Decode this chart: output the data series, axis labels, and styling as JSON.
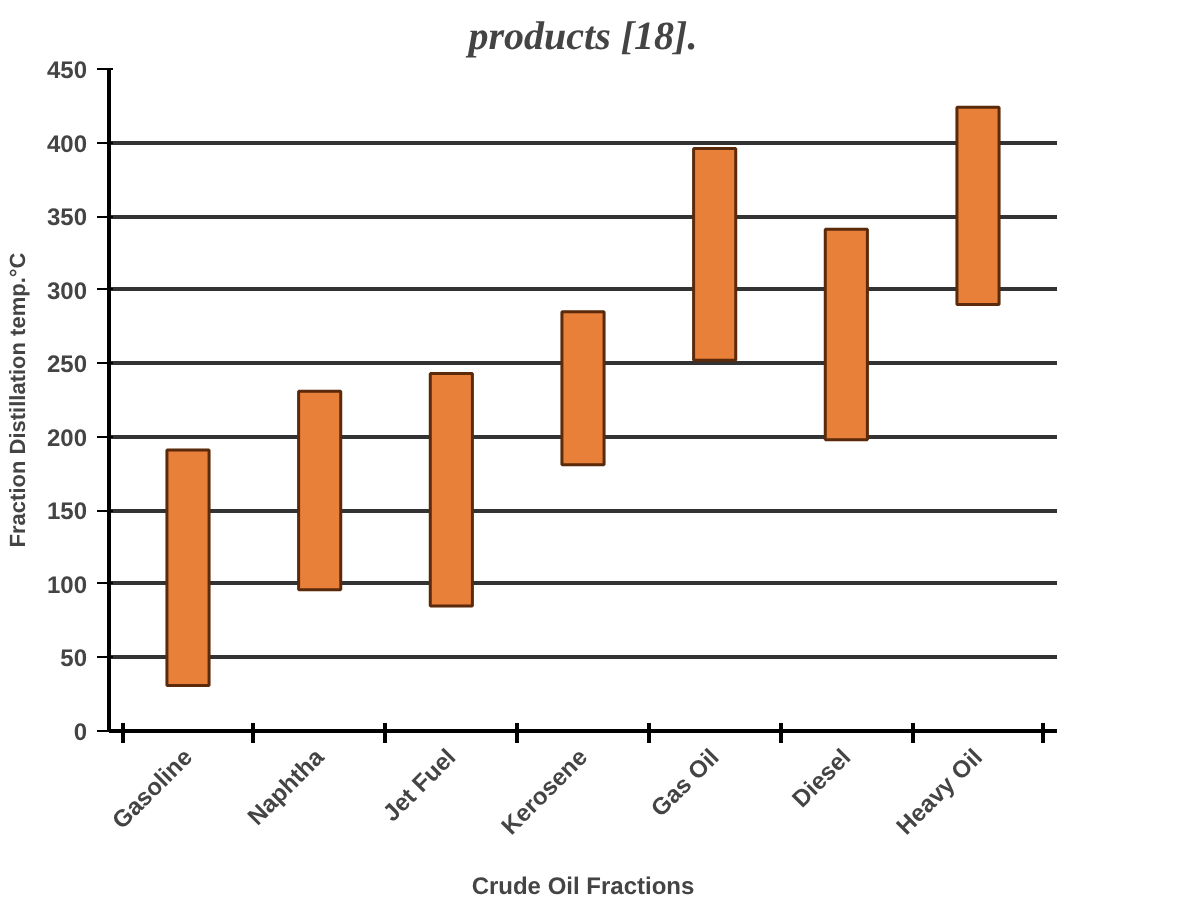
{
  "chart_data": {
    "type": "bar",
    "title": "products [18].",
    "xlabel": "Crude Oil Fractions",
    "ylabel": "Fraction Distillation temp.°C",
    "categories": [
      "Gasoline",
      "Naphtha",
      "Jet Fuel",
      "Kerosene",
      "Gas Oil",
      "Diesel",
      "Heavy Oil"
    ],
    "base": [
      31,
      96,
      85,
      181,
      252,
      198,
      290
    ],
    "values": [
      160,
      135,
      158,
      104,
      144,
      143,
      134
    ],
    "color": "#e8803a",
    "ylim": [
      0,
      450
    ],
    "yticks": [
      0,
      50,
      100,
      150,
      200,
      250,
      300,
      350,
      400,
      450
    ],
    "grid": "y"
  }
}
